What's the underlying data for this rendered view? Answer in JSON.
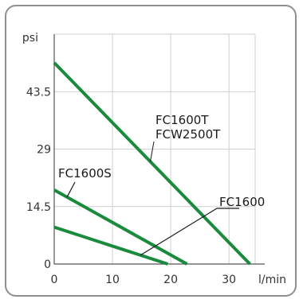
{
  "chart_data": {
    "type": "line",
    "title": "",
    "xlabel": "l/min",
    "ylabel": "psi",
    "xlim": [
      0,
      34.5
    ],
    "ylim": [
      0,
      58
    ],
    "x_ticks": [
      0,
      10,
      20,
      30
    ],
    "x_tick_labels": [
      "0",
      "10",
      "20",
      "30"
    ],
    "y_ticks": [
      0,
      14.5,
      29,
      43.5
    ],
    "y_tick_labels": [
      "0",
      "14.5",
      "29",
      "43.5"
    ],
    "grid": true,
    "line_color": "#1a8a3c",
    "series": [
      {
        "name": "FC1600T / FCW2500T",
        "x": [
          0,
          33.6
        ],
        "y": [
          50.8,
          0
        ]
      },
      {
        "name": "FC1600S",
        "x": [
          0,
          22.8
        ],
        "y": [
          18.7,
          0
        ]
      },
      {
        "name": "FC1600",
        "x": [
          0,
          19.5
        ],
        "y": [
          9.3,
          0
        ]
      }
    ],
    "annotations": [
      {
        "key": "t",
        "text": "FC1600T"
      },
      {
        "key": "w",
        "text": "FCW2500T"
      },
      {
        "key": "s",
        "text": "FC1600S"
      },
      {
        "key": "f",
        "text": "FC1600"
      }
    ]
  }
}
